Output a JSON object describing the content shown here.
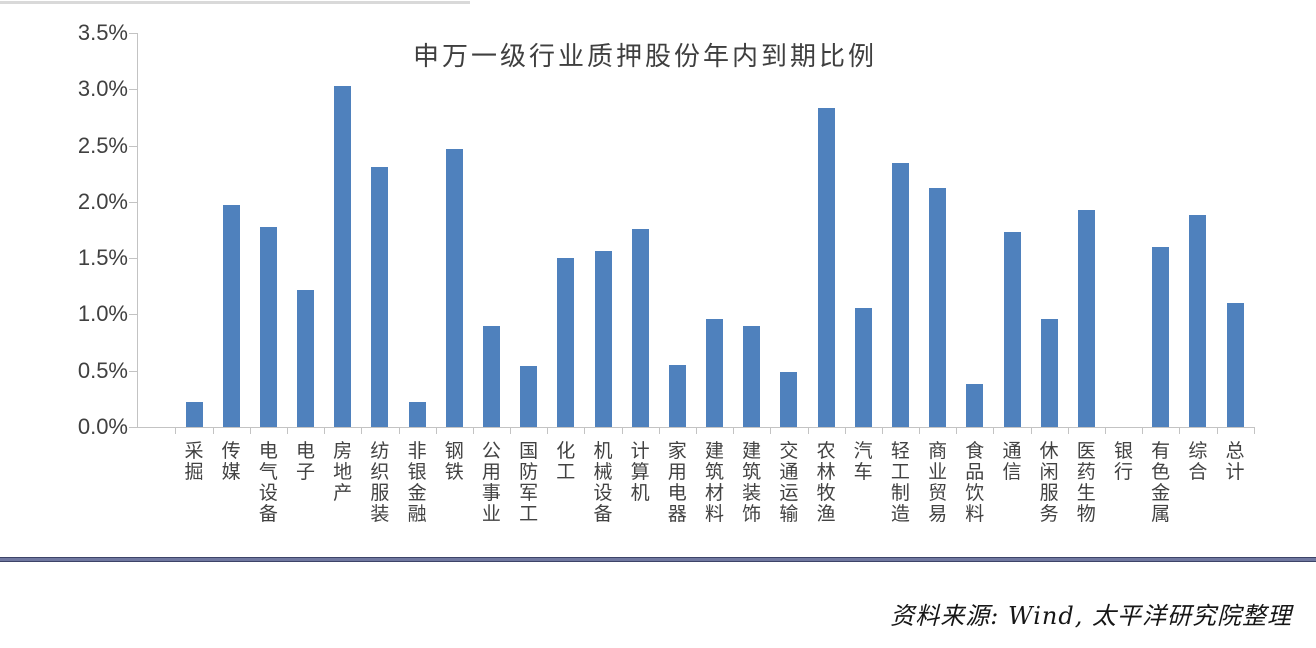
{
  "chart_data": {
    "type": "bar",
    "title": "申万一级行业质押股份年内到期比例",
    "categories": [
      "采掘",
      "传媒",
      "电气设备",
      "电子",
      "房地产",
      "纺织服装",
      "非银金融",
      "钢铁",
      "公用事业",
      "国防军工",
      "化工",
      "机械设备",
      "计算机",
      "家用电器",
      "建筑材料",
      "建筑装饰",
      "交通运输",
      "农林牧渔",
      "汽车",
      "轻工制造",
      "商业贸易",
      "食品饮料",
      "通信",
      "休闲服务",
      "医药生物",
      "银行",
      "有色金属",
      "综合",
      "总计"
    ],
    "values": [
      0.22,
      1.97,
      1.78,
      1.22,
      3.03,
      2.31,
      0.22,
      2.47,
      0.9,
      0.54,
      1.5,
      1.56,
      1.76,
      0.55,
      0.96,
      0.9,
      0.49,
      2.83,
      1.06,
      2.35,
      2.12,
      0.38,
      1.73,
      0.96,
      1.93,
      0.0,
      1.6,
      1.88,
      1.1
    ],
    "unit": "%",
    "xlabel": "",
    "ylabel": "",
    "ylim": [
      0,
      3.5
    ],
    "ytick_step": 0.5,
    "ytick_labels": [
      "0.0%",
      "0.5%",
      "1.0%",
      "1.5%",
      "2.0%",
      "2.5%",
      "3.0%",
      "3.5%"
    ],
    "grid": "off",
    "legend": "none",
    "bar_color": "#4f81bd",
    "axis_color": "#c3c3c3",
    "label_color": "#404040"
  },
  "footer": {
    "source_text": "资料来源: Wind, 太平洋研究院整理"
  }
}
